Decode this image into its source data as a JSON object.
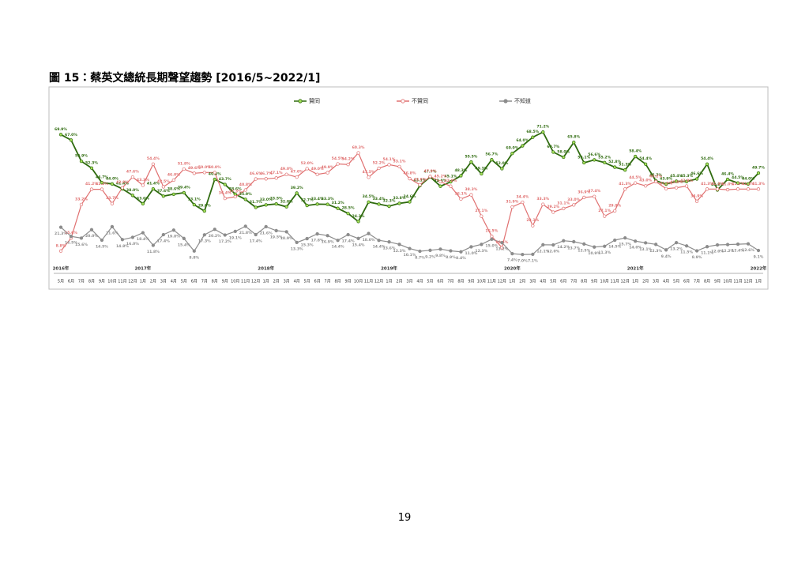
{
  "chart_data": {
    "type": "line",
    "title": "圖 15：蔡英文總統長期聲望趨勢  [2016/5~2022/1]",
    "categories": [
      "5月",
      "6月",
      "7月",
      "8月",
      "9月",
      "10月",
      "11月",
      "12月",
      "1月",
      "2月",
      "3月",
      "4月",
      "5月",
      "6月",
      "7月",
      "8月",
      "9月",
      "10月",
      "11月",
      "12月",
      "1月",
      "2月",
      "3月",
      "4月",
      "5月",
      "6月",
      "7月",
      "8月",
      "9月",
      "10月",
      "11月",
      "12月",
      "1月",
      "2月",
      "3月",
      "4月",
      "5月",
      "6月",
      "7月",
      "8月",
      "9月",
      "10月",
      "11月",
      "12月",
      "1月",
      "2月",
      "3月",
      "4月",
      "5月",
      "6月",
      "7月",
      "8月",
      "9月",
      "10月",
      "11月",
      "12月",
      "1月",
      "2月",
      "3月",
      "4月",
      "5月",
      "6月",
      "7月",
      "8月",
      "9月",
      "10月",
      "11月",
      "12月",
      "1月"
    ],
    "year_labels": [
      "2016年",
      null,
      null,
      null,
      null,
      null,
      null,
      null,
      "2017年",
      null,
      null,
      null,
      null,
      null,
      null,
      null,
      null,
      null,
      null,
      null,
      "2018年",
      null,
      null,
      null,
      null,
      null,
      null,
      null,
      null,
      null,
      null,
      null,
      "2019年",
      null,
      null,
      null,
      null,
      null,
      null,
      null,
      null,
      null,
      null,
      null,
      "2020年",
      null,
      null,
      null,
      null,
      null,
      null,
      null,
      null,
      null,
      null,
      null,
      "2021年",
      null,
      null,
      null,
      null,
      null,
      null,
      null,
      null,
      null,
      null,
      null,
      "2022年"
    ],
    "ylim": [
      0,
      75
    ],
    "legend": "top",
    "series": [
      {
        "name": "贊同",
        "color": "#2f6b0f",
        "marker_color": "#a6e05a",
        "values": [
          69.9,
          67.0,
          55.9,
          52.3,
          44.7,
          44.0,
          41.4,
          38.0,
          33.6,
          41.4,
          37.6,
          38.6,
          39.4,
          33.1,
          29.8,
          46.4,
          43.7,
          38.6,
          35.9,
          31.7,
          33.0,
          33.5,
          32.0,
          39.2,
          32.7,
          33.4,
          33.3,
          31.2,
          28.5,
          24.3,
          34.5,
          33.4,
          32.3,
          33.8,
          34.6,
          43.1,
          47.7,
          42.8,
          45.1,
          48.3,
          55.5,
          49.3,
          56.7,
          52.0,
          60.0,
          64.0,
          68.5,
          71.2,
          60.7,
          58.0,
          65.8,
          55.1,
          56.6,
          55.2,
          52.8,
          51.3,
          58.4,
          54.4,
          45.7,
          43.9,
          45.4,
          45.3,
          46.6,
          54.4,
          40.8,
          46.4,
          44.5,
          44.0,
          49.7
        ],
        "value_labels": [
          "69.9%",
          "67.0%",
          "55.9%",
          "52.3%",
          "44.7%",
          "44.0%",
          "41.4%",
          "38.0%",
          "33.6%",
          "41.4%",
          "37.6%",
          "38.6%",
          "39.4%",
          "33.1%",
          "29.8%",
          "46.4%",
          "43.7%",
          "38.6%",
          "35.9%",
          "31.7%",
          "33.0%",
          "33.5%",
          "32.0%",
          "39.2%",
          "32.7%",
          "33.4%",
          "33.3%",
          "31.2%",
          "28.5%",
          "24.3%",
          "34.5%",
          "33.4%",
          "32.3%",
          "33.8%",
          "34.6%",
          "43.1%",
          "47.7%",
          "42.8%",
          "45.1%",
          "48.3%",
          "55.5%",
          "49.3%",
          "56.7%",
          "52.0%",
          "60.0%",
          "64.0%",
          "68.5%",
          "71.2%",
          "60.7%",
          "58.0%",
          "65.8%",
          "55.1%",
          "56.6%",
          "55.2%",
          "52.8%",
          "51.3%",
          "58.4%",
          "54.4%",
          "45.7%",
          "43.9%",
          "45.4%",
          "45.3%",
          "46.6%",
          "54.4%",
          "40.8%",
          "46.4%",
          "44.5%",
          "44.0%",
          "49.7%"
        ]
      },
      {
        "name": "不贊同",
        "color": "#e07070",
        "marker_color": "#ffffff",
        "values": [
          8.8,
          15.6,
          33.2,
          41.2,
          41.2,
          33.7,
          42.0,
          47.6,
          43.3,
          54.4,
          42.5,
          46.0,
          51.8,
          49.6,
          50.0,
          50.0,
          36.4,
          37.3,
          40.8,
          46.6,
          46.7,
          47.1,
          49.0,
          47.6,
          52.0,
          49.0,
          49.9,
          54.5,
          54.2,
          60.3,
          47.5,
          52.2,
          54.1,
          53.1,
          46.8,
          43.6,
          47.9,
          45.2,
          42.8,
          36.1,
          38.3,
          27.1,
          16.5,
          10.6,
          31.9,
          34.4,
          22.1,
          33.3,
          29.2,
          31.1,
          33.0,
          36.9,
          37.4,
          27.1,
          29.9,
          41.3,
          44.5,
          43.0,
          45.2,
          41.5,
          42.0,
          42.9,
          34.9,
          41.3,
          41.3,
          41.0,
          41.3,
          41.3,
          41.3
        ],
        "value_labels": [
          "8.8%",
          "15.6%",
          "33.2%",
          "41.2%",
          "41.2%",
          "33.7%",
          "42.0%",
          "47.6%",
          "43.3%",
          "54.4%",
          "42.5%",
          "46.0%",
          "51.8%",
          "49.6%",
          "50.0%",
          "50.0%",
          "36.4%",
          "37.3%",
          "40.8%",
          "46.6%",
          "46.7%",
          "47.1%",
          "49.0%",
          "47.6%",
          "52.0%",
          "49.0%",
          "49.9%",
          "54.5%",
          "54.2%",
          "60.3%",
          "47.5%",
          "52.2%",
          "54.1%",
          "53.1%",
          "46.8%",
          "43.6%",
          "47.9%",
          "45.2%",
          "42.8%",
          "36.1%",
          "38.3%",
          "27.1%",
          "16.5%",
          "10.6%",
          "31.9%",
          "34.4%",
          "22.1%",
          "33.3%",
          "29.2%",
          "31.1%",
          "33.0%",
          "36.9%",
          "37.4%",
          "27.1%",
          "29.9%",
          "41.3%",
          "44.5%",
          "43.0%",
          "45.2%",
          "41.5%",
          "42.0%",
          "42.9%",
          "34.9%",
          "41.3%",
          "41.3%",
          "41.0%",
          "41.3%",
          "41.3%",
          "41.3%"
        ]
      },
      {
        "name": "不知道",
        "color": "#8c8c8c",
        "marker_color": "#8c8c8c",
        "values": [
          21.3,
          16.5,
          15.6,
          20.0,
          14.5,
          21.6,
          14.8,
          16.0,
          18.4,
          11.8,
          17.4,
          19.8,
          15.4,
          8.8,
          17.3,
          20.2,
          17.2,
          19.1,
          21.8,
          17.4,
          21.6,
          19.5,
          18.9,
          13.3,
          15.3,
          17.8,
          16.9,
          14.4,
          17.4,
          15.4,
          18.0,
          14.4,
          13.6,
          12.3,
          10.1,
          8.7,
          9.2,
          9.8,
          8.9,
          8.4,
          11.0,
          12.3,
          15.0,
          13.2,
          7.4,
          7.0,
          7.1,
          12.1,
          12.0,
          14.2,
          13.7,
          12.5,
          10.9,
          11.3,
          14.5,
          15.7,
          14.0,
          13.1,
          12.3,
          9.4,
          13.2,
          11.5,
          8.9,
          11.1,
          12.0,
          12.2,
          12.4,
          12.6,
          9.1
        ],
        "value_labels": [
          "21.3%",
          "16.5%",
          "15.6%",
          "20.0%",
          "14.5%",
          "21.6%",
          "14.8%",
          "16.0%",
          "18.4%",
          "11.8%",
          "17.4%",
          "19.8%",
          "15.4%",
          "8.8%",
          "17.3%",
          "20.2%",
          "17.2%",
          "19.1%",
          "21.8%",
          "17.4%",
          "21.6%",
          "19.5%",
          "18.9%",
          "13.3%",
          "15.3%",
          "17.8%",
          "16.9%",
          "14.4%",
          "17.4%",
          "15.4%",
          "18.0%",
          "14.4%",
          "13.6%",
          "12.3%",
          "10.1%",
          "8.7%",
          "9.2%",
          "9.8%",
          "8.9%",
          "8.4%",
          "11.0%",
          "12.3%",
          "15.0%",
          "13.2%",
          "7.4%",
          "7.0%",
          "7.1%",
          "12.1%",
          "12.0%",
          "14.2%",
          "13.7%",
          "12.5%",
          "10.9%",
          "11.3%",
          "14.5%",
          "15.7%",
          "14.0%",
          "13.1%",
          "12.3%",
          "9.4%",
          "13.2%",
          "11.5%",
          "8.9%",
          "11.1%",
          "12.0%",
          "12.2%",
          "12.4%",
          "12.6%",
          "9.1%"
        ]
      }
    ]
  },
  "page_number": "19"
}
